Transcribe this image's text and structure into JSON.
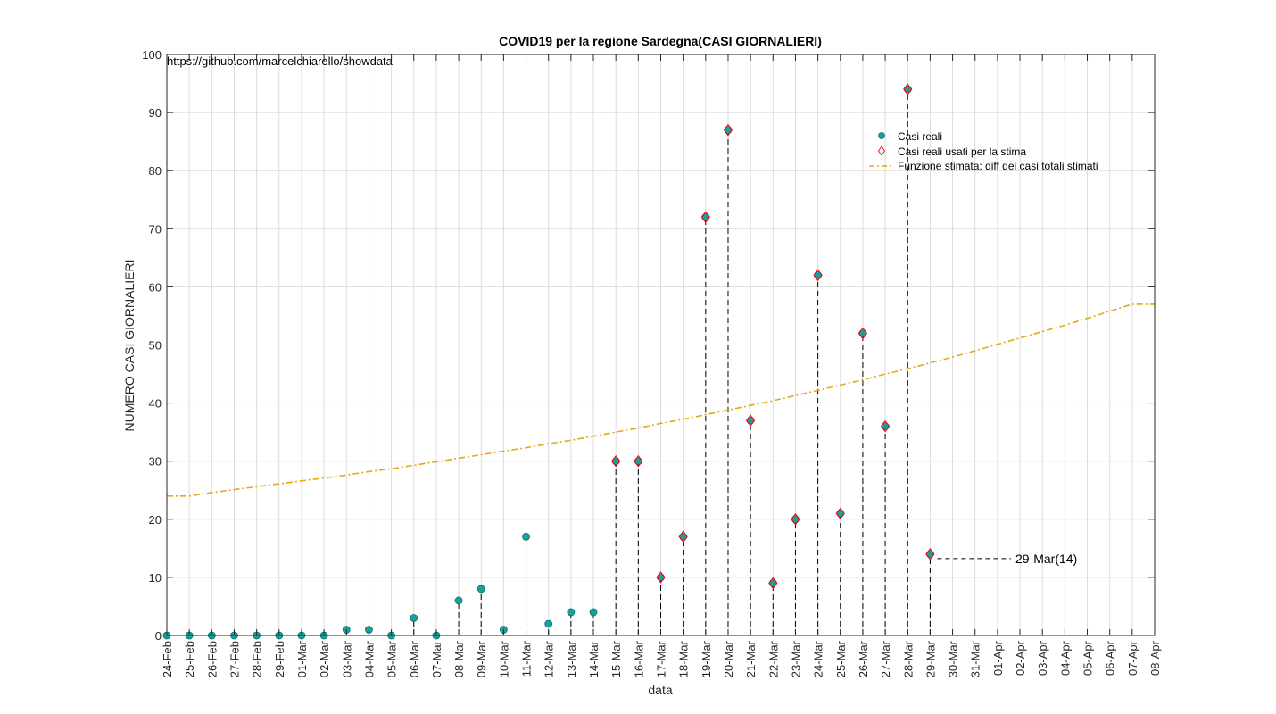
{
  "chart_data": {
    "type": "scatter",
    "title": "COVID19 per la regione Sardegna(CASI GIORNALIERI)",
    "source": "https://github.com/marcelchiarello/showdata",
    "xlabel": "data",
    "ylabel": "NUMERO CASI GIORNALIERI",
    "ylim": [
      0,
      100
    ],
    "yticks": [
      0,
      10,
      20,
      30,
      40,
      50,
      60,
      70,
      80,
      90,
      100
    ],
    "grid": true,
    "legend_position": "top-right",
    "categories": [
      "24-Feb",
      "25-Feb",
      "26-Feb",
      "27-Feb",
      "28-Feb",
      "29-Feb",
      "01-Mar",
      "02-Mar",
      "03-Mar",
      "04-Mar",
      "05-Mar",
      "06-Mar",
      "07-Mar",
      "08-Mar",
      "09-Mar",
      "10-Mar",
      "11-Mar",
      "12-Mar",
      "13-Mar",
      "14-Mar",
      "15-Mar",
      "16-Mar",
      "17-Mar",
      "18-Mar",
      "19-Mar",
      "20-Mar",
      "21-Mar",
      "22-Mar",
      "23-Mar",
      "24-Mar",
      "25-Mar",
      "26-Mar",
      "27-Mar",
      "28-Mar",
      "29-Mar",
      "30-Mar",
      "31-Mar",
      "01-Apr",
      "02-Apr",
      "03-Apr",
      "04-Apr",
      "05-Apr",
      "06-Apr",
      "07-Apr",
      "08-Apr"
    ],
    "series": [
      {
        "name": "Casi reali",
        "marker": "filled-circle",
        "color": "#1a9e9e",
        "x": [
          "24-Feb",
          "25-Feb",
          "26-Feb",
          "27-Feb",
          "28-Feb",
          "29-Feb",
          "01-Mar",
          "02-Mar",
          "03-Mar",
          "04-Mar",
          "05-Mar",
          "06-Mar",
          "07-Mar",
          "08-Mar",
          "09-Mar",
          "10-Mar",
          "11-Mar",
          "12-Mar",
          "13-Mar",
          "14-Mar",
          "15-Mar",
          "16-Mar",
          "17-Mar",
          "18-Mar",
          "19-Mar",
          "20-Mar",
          "21-Mar",
          "22-Mar",
          "23-Mar",
          "24-Mar",
          "25-Mar",
          "26-Mar",
          "27-Mar",
          "28-Mar",
          "29-Mar"
        ],
        "values": [
          0,
          0,
          0,
          0,
          0,
          0,
          0,
          0,
          1,
          1,
          0,
          3,
          0,
          6,
          8,
          1,
          17,
          2,
          4,
          4,
          30,
          30,
          10,
          17,
          72,
          87,
          37,
          9,
          20,
          62,
          21,
          52,
          36,
          94,
          14
        ]
      },
      {
        "name": "Casi reali usati per la stima",
        "marker": "open-diamond",
        "color": "#ff0000",
        "x": [
          "15-Mar",
          "16-Mar",
          "17-Mar",
          "18-Mar",
          "19-Mar",
          "20-Mar",
          "21-Mar",
          "22-Mar",
          "23-Mar",
          "24-Mar",
          "25-Mar",
          "26-Mar",
          "27-Mar",
          "28-Mar",
          "29-Mar"
        ],
        "values": [
          30,
          30,
          10,
          17,
          72,
          87,
          37,
          9,
          20,
          62,
          21,
          52,
          36,
          94,
          14
        ]
      },
      {
        "name": "Funzione stimata: diff dei casi totali stimati",
        "style": "dash-dot",
        "color": "#e6a817",
        "x": [
          "24-Feb",
          "25-Feb",
          "26-Feb",
          "27-Feb",
          "28-Feb",
          "29-Feb",
          "01-Mar",
          "02-Mar",
          "03-Mar",
          "04-Mar",
          "05-Mar",
          "06-Mar",
          "07-Mar",
          "08-Mar",
          "09-Mar",
          "10-Mar",
          "11-Mar",
          "12-Mar",
          "13-Mar",
          "14-Mar",
          "15-Mar",
          "16-Mar",
          "17-Mar",
          "18-Mar",
          "19-Mar",
          "20-Mar",
          "21-Mar",
          "22-Mar",
          "23-Mar",
          "24-Mar",
          "25-Mar",
          "26-Mar",
          "27-Mar",
          "28-Mar",
          "29-Mar",
          "30-Mar",
          "31-Mar",
          "01-Apr",
          "02-Apr",
          "03-Apr",
          "04-Apr",
          "05-Apr",
          "06-Apr",
          "07-Apr",
          "08-Apr"
        ],
        "values": [
          24.0,
          24.0,
          24.6,
          25.1,
          25.6,
          26.1,
          26.6,
          27.1,
          27.6,
          28.2,
          28.7,
          29.3,
          29.9,
          30.5,
          31.1,
          31.7,
          32.3,
          33.0,
          33.6,
          34.3,
          35.0,
          35.7,
          36.5,
          37.2,
          38.0,
          38.8,
          39.6,
          40.4,
          41.3,
          42.2,
          43.1,
          44.0,
          45.0,
          45.9,
          46.9,
          47.9,
          49.0,
          50.1,
          51.2,
          52.3,
          53.4,
          54.6,
          55.8,
          57.0,
          57.0
        ]
      }
    ],
    "annotation": {
      "x": "29-Mar",
      "y": 14,
      "text": "29-Mar(14)"
    }
  }
}
